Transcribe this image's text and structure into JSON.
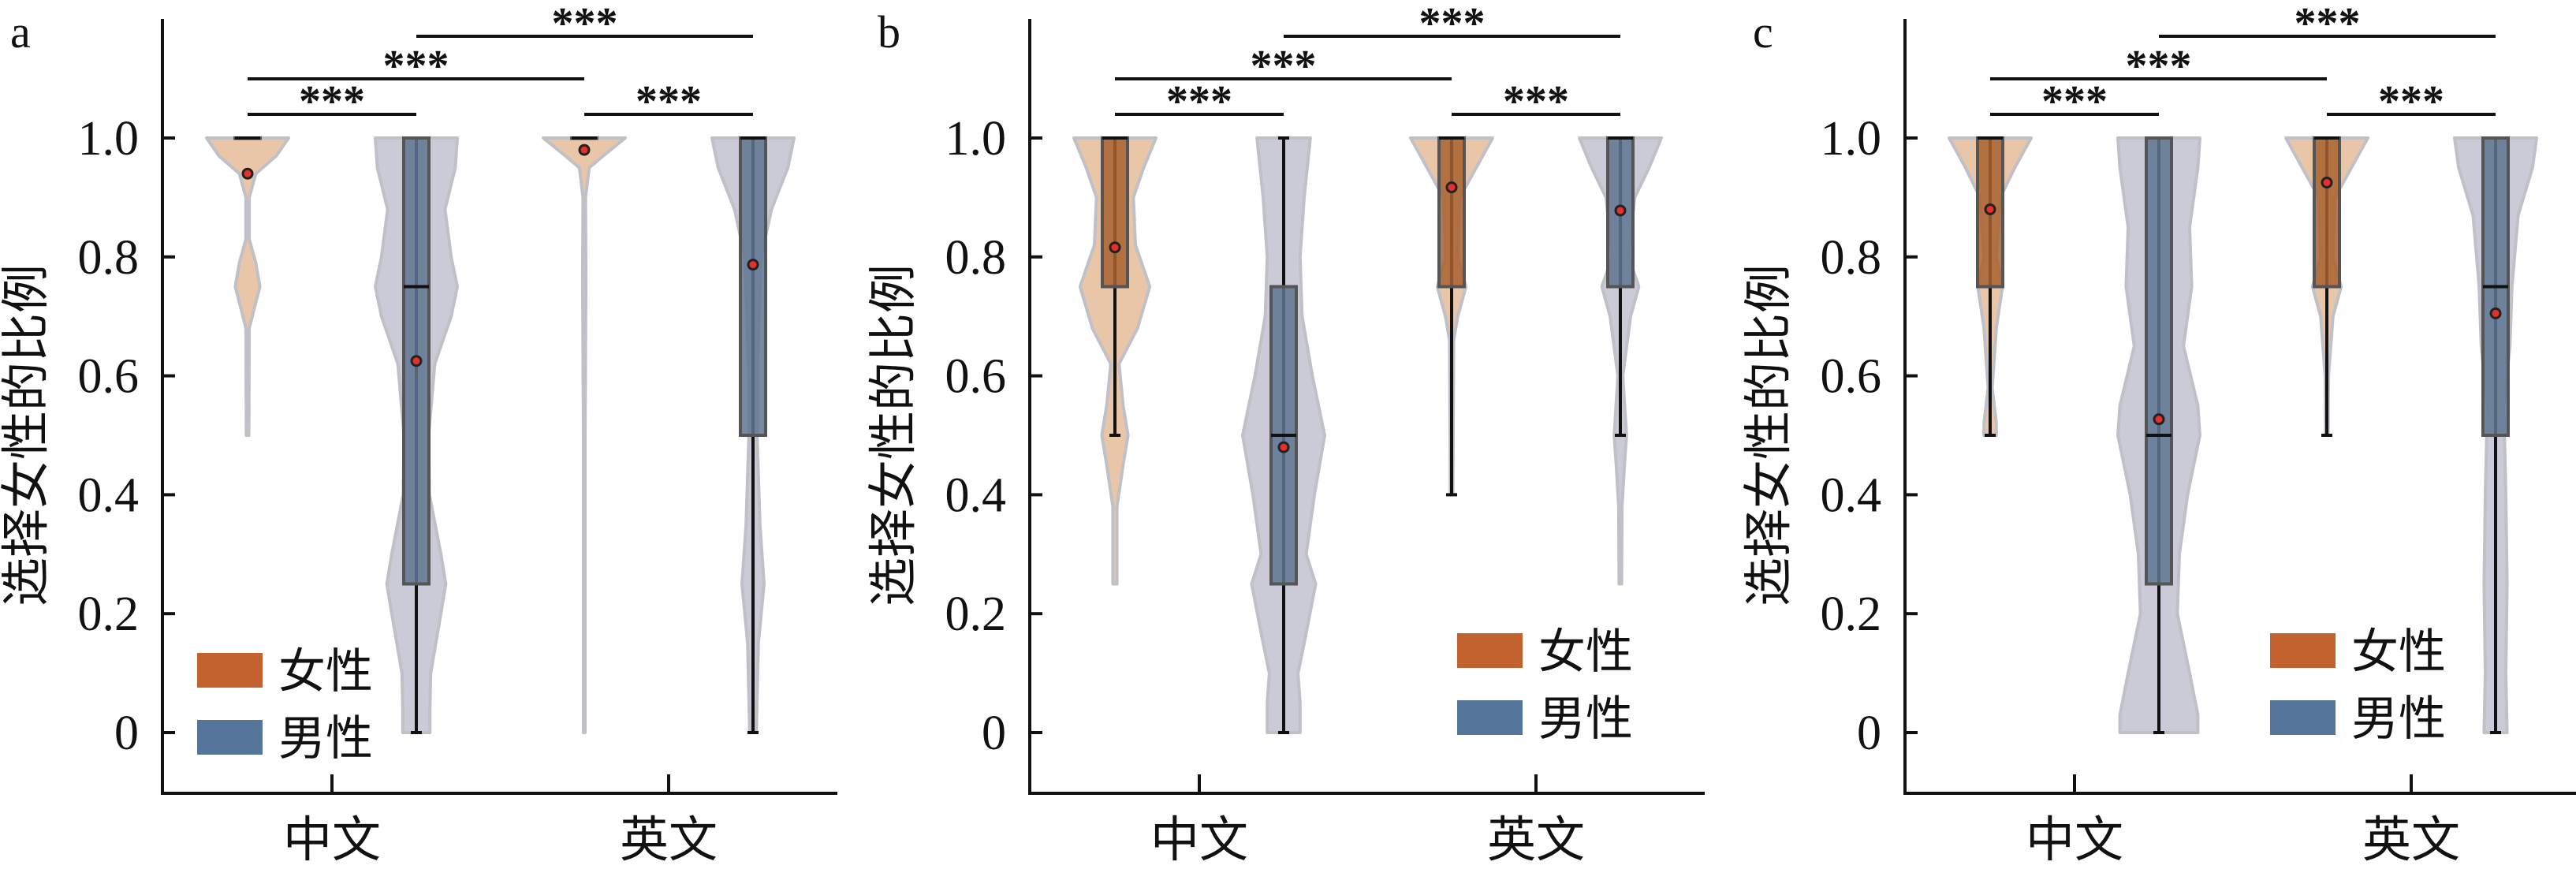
{
  "colors": {
    "female_violin": "#e9c3a4",
    "female_box": "#a9602f",
    "male_violin": "#c9c9d5",
    "male_box": "#5e7592",
    "violin_edge": "#bdbdc6",
    "legend_female": "#c4622f",
    "legend_male": "#56759b",
    "mean_marker": "#e8302a",
    "axis": "#111111"
  },
  "chart_data": [
    {
      "panel": "a",
      "type": "violin+box",
      "ylabel": "选择女性的比例",
      "categories": [
        "中文",
        "英文"
      ],
      "yticks": [
        "0",
        "0.2",
        "0.4",
        "0.6",
        "0.8",
        "1.0"
      ],
      "ylim": [
        -0.1,
        1.2
      ],
      "legend": {
        "placement": "lower-left",
        "entries": [
          "女性",
          "男性"
        ]
      },
      "significance": [
        "***",
        "***",
        "***",
        "***"
      ],
      "series": [
        {
          "name": "女性",
          "groups": [
            {
              "category": "中文",
              "q1": 1.0,
              "median": 1.0,
              "q3": 1.0,
              "whisker_low": 1.0,
              "whisker_high": 1.0,
              "mean": 0.94,
              "density": [
                [
                  1,
                  1
                ],
                [
                  0.97,
                  0.7
                ],
                [
                  0.94,
                  0.2
                ],
                [
                  0.9,
                  0.04
                ],
                [
                  0.83,
                  0.04
                ],
                [
                  0.79,
                  0.2
                ],
                [
                  0.75,
                  0.3
                ],
                [
                  0.71,
                  0.15
                ],
                [
                  0.68,
                  0.04
                ],
                [
                  0.5,
                  0.03
                ]
              ]
            },
            {
              "category": "英文",
              "q1": 1.0,
              "median": 1.0,
              "q3": 1.0,
              "whisker_low": 1.0,
              "whisker_high": 1.0,
              "mean": 0.98,
              "density": [
                [
                  1,
                  1
                ],
                [
                  0.975,
                  0.55
                ],
                [
                  0.95,
                  0.12
                ],
                [
                  0.9,
                  0.03
                ],
                [
                  0.76,
                  0.04
                ],
                [
                  0.5,
                  0.02
                ],
                [
                  0,
                  0.02
                ]
              ]
            }
          ]
        },
        {
          "name": "男性",
          "groups": [
            {
              "category": "中文",
              "q1": 0.25,
              "median": 0.75,
              "q3": 1.0,
              "whisker_low": 0.0,
              "whisker_high": 1.0,
              "mean": 0.625,
              "density": [
                [
                  1,
                  1
                ],
                [
                  0.95,
                  0.95
                ],
                [
                  0.88,
                  0.7
                ],
                [
                  0.8,
                  0.85
                ],
                [
                  0.75,
                  1
                ],
                [
                  0.7,
                  0.85
                ],
                [
                  0.62,
                  0.45
                ],
                [
                  0.5,
                  0.3
                ],
                [
                  0.4,
                  0.32
                ],
                [
                  0.3,
                  0.6
                ],
                [
                  0.25,
                  0.72
                ],
                [
                  0.18,
                  0.55
                ],
                [
                  0.1,
                  0.35
                ],
                [
                  0.04,
                  0.33
                ],
                [
                  0,
                  0.33
                ]
              ]
            },
            {
              "category": "英文",
              "q1": 0.5,
              "median": 1.0,
              "q3": 1.0,
              "whisker_low": 0.0,
              "whisker_high": 1.0,
              "mean": 0.787,
              "density": [
                [
                  1,
                  1
                ],
                [
                  0.95,
                  0.85
                ],
                [
                  0.88,
                  0.45
                ],
                [
                  0.8,
                  0.2
                ],
                [
                  0.6,
                  0.1
                ],
                [
                  0.5,
                  0.1
                ],
                [
                  0.35,
                  0.17
                ],
                [
                  0.25,
                  0.27
                ],
                [
                  0.15,
                  0.13
                ],
                [
                  0,
                  0.08
                ]
              ]
            }
          ]
        }
      ]
    },
    {
      "panel": "b",
      "type": "violin+box",
      "ylabel": "选择女性的比例",
      "categories": [
        "中文",
        "英文"
      ],
      "yticks": [
        "0",
        "0.2",
        "0.4",
        "0.6",
        "0.8",
        "1.0"
      ],
      "ylim": [
        -0.1,
        1.2
      ],
      "legend": {
        "placement": "lower-right",
        "entries": [
          "女性",
          "男性"
        ]
      },
      "significance": [
        "***",
        "***",
        "***",
        "***"
      ],
      "series": [
        {
          "name": "女性",
          "groups": [
            {
              "category": "中文",
              "q1": 0.75,
              "median": 1.0,
              "q3": 1.0,
              "whisker_low": 0.5,
              "whisker_high": 1.0,
              "mean": 0.816,
              "density": [
                [
                  1,
                  1
                ],
                [
                  0.95,
                  0.7
                ],
                [
                  0.9,
                  0.45
                ],
                [
                  0.82,
                  0.5
                ],
                [
                  0.75,
                  0.85
                ],
                [
                  0.68,
                  0.55
                ],
                [
                  0.62,
                  0.1
                ],
                [
                  0.55,
                  0.2
                ],
                [
                  0.5,
                  0.32
                ],
                [
                  0.45,
                  0.2
                ],
                [
                  0.38,
                  0.05
                ],
                [
                  0.25,
                  0.05
                ]
              ]
            },
            {
              "category": "英文",
              "q1": 0.75,
              "median": 1.0,
              "q3": 1.0,
              "whisker_low": 0.4,
              "whisker_high": 1.0,
              "mean": 0.917,
              "density": [
                [
                  1,
                  1
                ],
                [
                  0.95,
                  0.6
                ],
                [
                  0.9,
                  0.2
                ],
                [
                  0.8,
                  0.15
                ],
                [
                  0.75,
                  0.35
                ],
                [
                  0.7,
                  0.15
                ],
                [
                  0.66,
                  0.05
                ],
                [
                  0.4,
                  0.03
                ]
              ]
            }
          ]
        },
        {
          "name": "男性",
          "groups": [
            {
              "category": "中文",
              "q1": 0.25,
              "median": 0.5,
              "q3": 0.75,
              "whisker_low": 0.0,
              "whisker_high": 1.0,
              "mean": 0.48,
              "density": [
                [
                  1,
                  0.65
                ],
                [
                  0.9,
                  0.5
                ],
                [
                  0.8,
                  0.4
                ],
                [
                  0.7,
                  0.45
                ],
                [
                  0.6,
                  0.7
                ],
                [
                  0.5,
                  1
                ],
                [
                  0.4,
                  0.75
                ],
                [
                  0.3,
                  0.55
                ],
                [
                  0.25,
                  0.78
                ],
                [
                  0.15,
                  0.5
                ],
                [
                  0.1,
                  0.35
                ],
                [
                  0.05,
                  0.4
                ],
                [
                  0,
                  0.4
                ]
              ]
            },
            {
              "category": "英文",
              "q1": 0.75,
              "median": 1.0,
              "q3": 1.0,
              "whisker_low": 0.5,
              "whisker_high": 1.0,
              "mean": 0.878,
              "density": [
                [
                  1,
                  1
                ],
                [
                  0.95,
                  0.7
                ],
                [
                  0.9,
                  0.35
                ],
                [
                  0.8,
                  0.2
                ],
                [
                  0.75,
                  0.45
                ],
                [
                  0.7,
                  0.25
                ],
                [
                  0.6,
                  0.06
                ],
                [
                  0.5,
                  0.15
                ],
                [
                  0.45,
                  0.1
                ],
                [
                  0.38,
                  0.04
                ],
                [
                  0.25,
                  0.03
                ]
              ]
            }
          ]
        }
      ]
    },
    {
      "panel": "c",
      "type": "violin+box",
      "ylabel": "选择女性的比例",
      "categories": [
        "中文",
        "英文"
      ],
      "yticks": [
        "0",
        "0.2",
        "0.4",
        "0.6",
        "0.8",
        "1.0"
      ],
      "ylim": [
        -0.1,
        1.2
      ],
      "legend": {
        "placement": "lower-right",
        "entries": [
          "女性",
          "男性"
        ]
      },
      "significance": [
        "***",
        "***",
        "***",
        "***"
      ],
      "series": [
        {
          "name": "女性",
          "groups": [
            {
              "category": "中文",
              "q1": 0.75,
              "median": 1.0,
              "q3": 1.0,
              "whisker_low": 0.5,
              "whisker_high": 1.0,
              "mean": 0.88,
              "density": [
                [
                  1,
                  1
                ],
                [
                  0.95,
                  0.6
                ],
                [
                  0.9,
                  0.25
                ],
                [
                  0.8,
                  0.15
                ],
                [
                  0.75,
                  0.3
                ],
                [
                  0.68,
                  0.15
                ],
                [
                  0.58,
                  0.05
                ],
                [
                  0.52,
                  0.15
                ],
                [
                  0.5,
                  0.15
                ]
              ]
            },
            {
              "category": "英文",
              "q1": 0.75,
              "median": 1.0,
              "q3": 1.0,
              "whisker_low": 0.5,
              "whisker_high": 1.0,
              "mean": 0.925,
              "density": [
                [
                  1,
                  1
                ],
                [
                  0.95,
                  0.6
                ],
                [
                  0.9,
                  0.2
                ],
                [
                  0.8,
                  0.15
                ],
                [
                  0.75,
                  0.35
                ],
                [
                  0.7,
                  0.15
                ],
                [
                  0.6,
                  0.04
                ],
                [
                  0.5,
                  0.03
                ]
              ]
            }
          ]
        },
        {
          "name": "男性",
          "groups": [
            {
              "category": "中文",
              "q1": 0.25,
              "median": 0.5,
              "q3": 1.0,
              "whisker_low": 0.0,
              "whisker_high": 1.0,
              "mean": 0.527,
              "density": [
                [
                  1,
                  1
                ],
                [
                  0.95,
                  0.95
                ],
                [
                  0.85,
                  0.75
                ],
                [
                  0.75,
                  0.8
                ],
                [
                  0.65,
                  0.6
                ],
                [
                  0.55,
                  0.95
                ],
                [
                  0.5,
                  1
                ],
                [
                  0.4,
                  0.7
                ],
                [
                  0.3,
                  0.5
                ],
                [
                  0.2,
                  0.45
                ],
                [
                  0.1,
                  0.75
                ],
                [
                  0.03,
                  0.95
                ],
                [
                  0,
                  0.95
                ]
              ]
            },
            {
              "category": "英文",
              "q1": 0.5,
              "median": 0.75,
              "q3": 1.0,
              "whisker_low": 0.0,
              "whisker_high": 1.0,
              "mean": 0.705,
              "density": [
                [
                  1,
                  1
                ],
                [
                  0.95,
                  0.9
                ],
                [
                  0.87,
                  0.55
                ],
                [
                  0.75,
                  0.4
                ],
                [
                  0.65,
                  0.35
                ],
                [
                  0.55,
                  0.2
                ],
                [
                  0.4,
                  0.25
                ],
                [
                  0.25,
                  0.28
                ],
                [
                  0.1,
                  0.25
                ],
                [
                  0,
                  0.28
                ]
              ]
            }
          ]
        }
      ]
    }
  ]
}
